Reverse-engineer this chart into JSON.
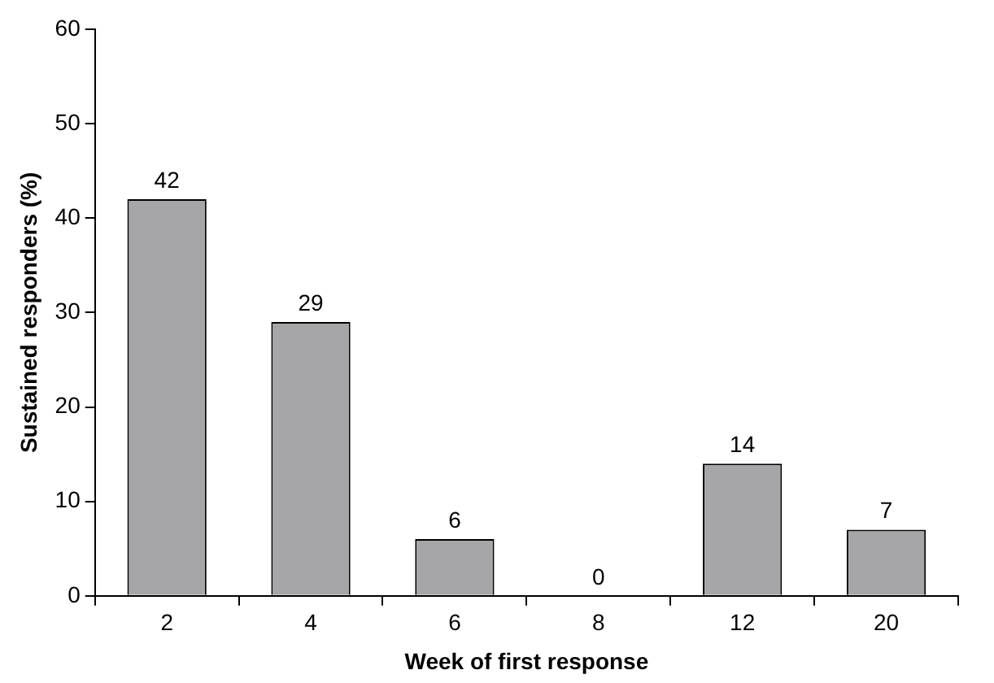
{
  "chart_data": {
    "type": "bar",
    "xlabel": "Week of first response",
    "ylabel": "Sustained responders (%)",
    "categories": [
      "2",
      "4",
      "6",
      "8",
      "12",
      "20"
    ],
    "values": [
      42,
      29,
      6,
      0,
      14,
      7
    ],
    "color": "#a6a6a9",
    "ylim": [
      0,
      60
    ],
    "yticks": [
      0,
      10,
      20,
      30,
      40,
      50,
      60
    ],
    "data_labels": true
  }
}
